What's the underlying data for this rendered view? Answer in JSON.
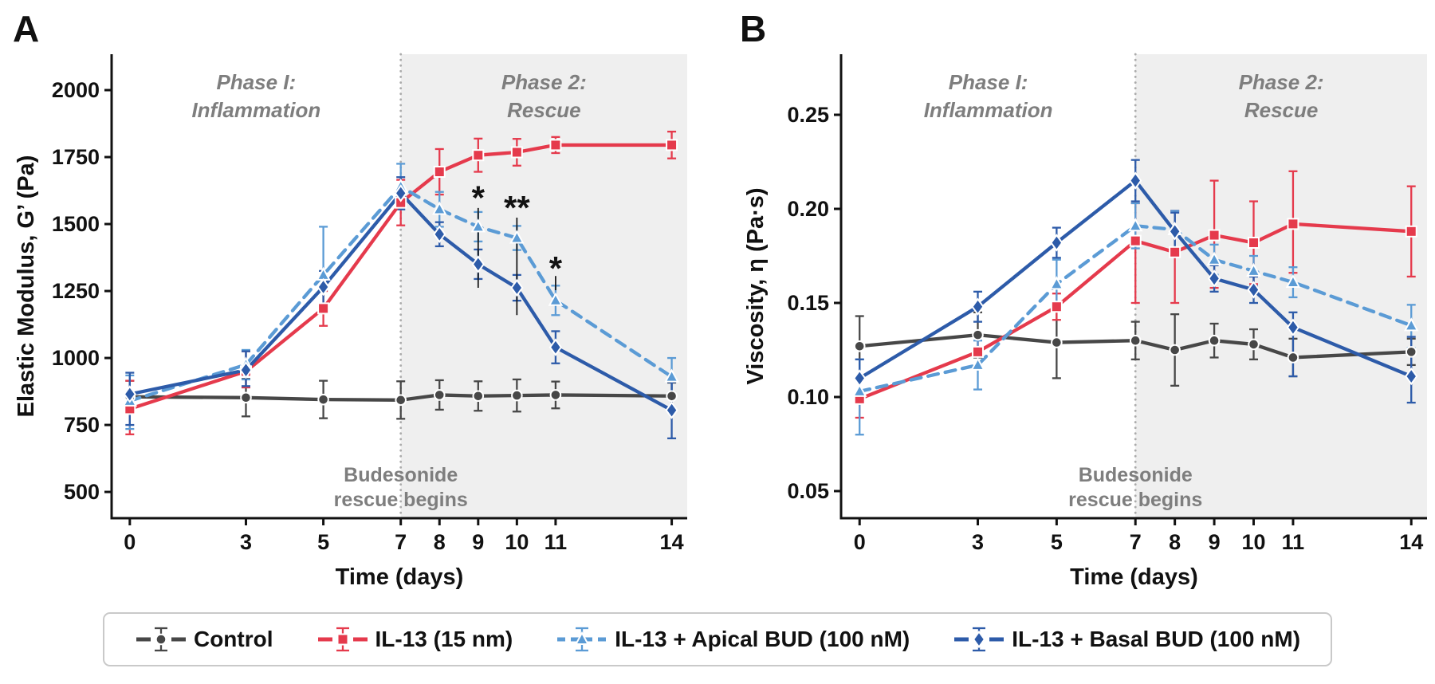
{
  "colors": {
    "control": "#474747",
    "il13": "#e53a4c",
    "apical": "#5b9bd5",
    "basal": "#2d5ba9",
    "axis": "#111111",
    "phase_text": "#7e7e7e",
    "phase2_bg": "#efefef",
    "divider": "#ababab",
    "legend_border": "#c9c9c9",
    "significance": "#1a1a1a"
  },
  "legend": {
    "items": [
      {
        "key": "control",
        "label": "Control",
        "marker": "circle",
        "dashed": false
      },
      {
        "key": "il13",
        "label": "IL-13 (15 nm)",
        "marker": "square",
        "dashed": false
      },
      {
        "key": "apical",
        "label": "IL-13 + Apical BUD (100 nM)",
        "marker": "triangle",
        "dashed": true
      },
      {
        "key": "basal",
        "label": "IL-13 + Basal BUD (100 nM)",
        "marker": "diamond",
        "dashed": false
      }
    ]
  },
  "chart_data": [
    {
      "type": "line",
      "panel_letter": "A",
      "xlabel": "Time (days)",
      "ylabel": "Elastic Modulus, G’ (Pa)",
      "x": [
        0,
        3,
        5,
        7,
        8,
        9,
        10,
        11,
        14
      ],
      "xtick_labels": [
        "0",
        "3",
        "5",
        "7",
        "8",
        "9",
        "10",
        "11",
        "14"
      ],
      "xlim": [
        -0.47,
        14.4
      ],
      "ylim": [
        402,
        2134
      ],
      "yticks": [
        500,
        750,
        1000,
        1250,
        1500,
        1750,
        2000
      ],
      "ytick_labels": [
        "500",
        "750",
        "1000",
        "1250",
        "1500",
        "1750",
        "2000"
      ],
      "grid": false,
      "rescue_day": 7,
      "phase1": [
        "Phase I:",
        "Inflammation"
      ],
      "phase2": [
        "Phase 2:",
        "Rescue"
      ],
      "annotation": [
        "Budesonide",
        "rescue begins"
      ],
      "series": [
        {
          "name": "Control",
          "key": "control",
          "marker": "circle",
          "dashed": false,
          "values": [
            855,
            852,
            845,
            843,
            862,
            858,
            860,
            862,
            858
          ],
          "err": [
            [
              60,
              60
            ],
            [
              70,
              70
            ],
            [
              70,
              70
            ],
            [
              70,
              70
            ],
            [
              55,
              55
            ],
            [
              55,
              55
            ],
            [
              60,
              60
            ],
            [
              50,
              50
            ],
            [
              50,
              50
            ]
          ]
        },
        {
          "name": "IL-13 (15 nm)",
          "key": "il13",
          "marker": "square",
          "dashed": false,
          "values": [
            810,
            950,
            1185,
            1580,
            1695,
            1757,
            1768,
            1795,
            1795
          ],
          "err": [
            [
              95,
              105
            ],
            [
              60,
              75
            ],
            [
              65,
              65
            ],
            [
              85,
              85
            ],
            [
              85,
              85
            ],
            [
              62,
              62
            ],
            [
              50,
              50
            ],
            [
              30,
              30
            ],
            [
              50,
              50
            ]
          ]
        },
        {
          "name": "IL-13 + Apical BUD (100 nM)",
          "key": "apical",
          "marker": "triangle",
          "dashed": true,
          "values": [
            840,
            975,
            1310,
            1640,
            1555,
            1490,
            1448,
            1215,
            930
          ],
          "err": [
            [
              105,
              95
            ],
            [
              55,
              55
            ],
            [
              55,
              180
            ],
            [
              85,
              85
            ],
            [
              65,
              65
            ],
            [
              55,
              55
            ],
            [
              45,
              45
            ],
            [
              55,
              55
            ],
            [
              60,
              70
            ]
          ]
        },
        {
          "name": "IL-13 + Basal BUD (100 nM)",
          "key": "basal",
          "marker": "diamond",
          "dashed": false,
          "values": [
            865,
            955,
            1265,
            1615,
            1462,
            1350,
            1262,
            1040,
            805
          ],
          "err": [
            [
              115,
              80
            ],
            [
              60,
              70
            ],
            [
              70,
              60
            ],
            [
              60,
              60
            ],
            [
              45,
              45
            ],
            [
              55,
              55
            ],
            [
              48,
              48
            ],
            [
              60,
              60
            ],
            [
              105,
              105
            ]
          ]
        }
      ],
      "significance": [
        {
          "day": 9,
          "label": "*",
          "label_y": 1612,
          "line_top": 1560,
          "line_bottom": 1262
        },
        {
          "day": 10,
          "label": "**",
          "label_y": 1574,
          "line_top": 1524,
          "line_bottom": 1160
        },
        {
          "day": 11,
          "label": "*",
          "label_y": 1348,
          "line_top": 1306,
          "line_bottom": 1253
        }
      ]
    },
    {
      "type": "line",
      "panel_letter": "B",
      "xlabel": "Time (days)",
      "ylabel": "Viscosity, η (Pa·s)",
      "x": [
        0,
        3,
        5,
        7,
        8,
        9,
        10,
        11,
        14
      ],
      "xtick_labels": [
        "0",
        "3",
        "5",
        "7",
        "8",
        "9",
        "10",
        "11",
        "14"
      ],
      "xlim": [
        -0.47,
        14.4
      ],
      "ylim": [
        0.0356,
        0.2822
      ],
      "yticks": [
        0.05,
        0.1,
        0.15,
        0.2,
        0.25
      ],
      "ytick_labels": [
        "0.05",
        "0.10",
        "0.15",
        "0.20",
        "0.25"
      ],
      "grid": false,
      "rescue_day": 7,
      "phase1": [
        "Phase I:",
        "Inflammation"
      ],
      "phase2": [
        "Phase 2:",
        "Rescue"
      ],
      "annotation": [
        "Budesonide",
        "rescue begins"
      ],
      "series": [
        {
          "name": "Control",
          "key": "control",
          "marker": "circle",
          "dashed": false,
          "values": [
            0.127,
            0.133,
            0.129,
            0.13,
            0.125,
            0.13,
            0.128,
            0.121,
            0.124
          ],
          "err": [
            [
              0.016,
              0.016
            ],
            [
              0.012,
              0.012
            ],
            [
              0.019,
              0.019
            ],
            [
              0.01,
              0.01
            ],
            [
              0.019,
              0.019
            ],
            [
              0.009,
              0.009
            ],
            [
              0.008,
              0.008
            ],
            [
              0.01,
              0.01
            ],
            [
              0.007,
              0.007
            ]
          ]
        },
        {
          "name": "IL-13 (15 nm)",
          "key": "il13",
          "marker": "square",
          "dashed": false,
          "values": [
            0.099,
            0.124,
            0.148,
            0.183,
            0.177,
            0.186,
            0.182,
            0.192,
            0.188
          ],
          "err": [
            [
              0.01,
              0.01
            ],
            [
              0.009,
              0.009
            ],
            [
              0.007,
              0.007
            ],
            [
              0.033,
              0.02
            ],
            [
              0.027,
              0.022
            ],
            [
              0.028,
              0.029
            ],
            [
              0.022,
              0.022
            ],
            [
              0.026,
              0.028
            ],
            [
              0.024,
              0.024
            ]
          ]
        },
        {
          "name": "IL-13 + Apical BUD (100 nM)",
          "key": "apical",
          "marker": "triangle",
          "dashed": true,
          "values": [
            0.103,
            0.117,
            0.16,
            0.191,
            0.189,
            0.173,
            0.167,
            0.161,
            0.138
          ],
          "err": [
            [
              0.023,
              0.017
            ],
            [
              0.013,
              0.013
            ],
            [
              0.013,
              0.013
            ],
            [
              0.012,
              0.012
            ],
            [
              0.01,
              0.01
            ],
            [
              0.008,
              0.008
            ],
            [
              0.008,
              0.008
            ],
            [
              0.008,
              0.008
            ],
            [
              0.012,
              0.011
            ]
          ]
        },
        {
          "name": "IL-13 + Basal BUD (100 nM)",
          "key": "basal",
          "marker": "diamond",
          "dashed": false,
          "values": [
            0.11,
            0.148,
            0.182,
            0.215,
            0.188,
            0.163,
            0.157,
            0.137,
            0.111
          ],
          "err": [
            [
              0.01,
              0.01
            ],
            [
              0.008,
              0.008
            ],
            [
              0.008,
              0.008
            ],
            [
              0.011,
              0.011
            ],
            [
              0.01,
              0.01
            ],
            [
              0.007,
              0.007
            ],
            [
              0.007,
              0.007
            ],
            [
              0.026,
              0.008
            ],
            [
              0.014,
              0.021
            ]
          ]
        }
      ],
      "significance": []
    }
  ]
}
